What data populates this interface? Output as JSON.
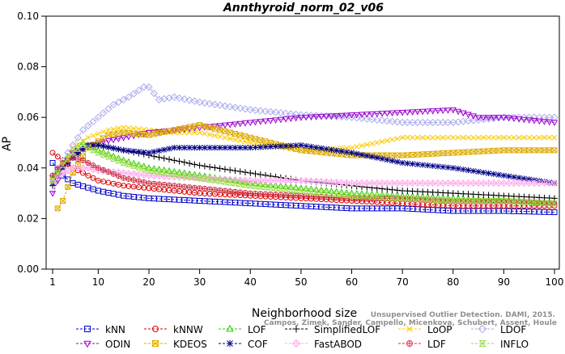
{
  "chart_data": {
    "type": "line",
    "title": "Annthyroid_norm_02_v06",
    "xlabel": "Neighborhood size",
    "ylabel": "AP",
    "xlim": [
      1,
      100
    ],
    "ylim": [
      0.0,
      0.1
    ],
    "xticks": [
      1,
      10,
      20,
      30,
      40,
      50,
      60,
      70,
      80,
      90,
      100
    ],
    "yticks": [
      0.0,
      0.02,
      0.04,
      0.06,
      0.08,
      0.1
    ],
    "ytick_labels": [
      "0.00",
      "0.02",
      "0.04",
      "0.06",
      "0.08",
      "0.10"
    ],
    "grid": false,
    "legend_position": "bottom",
    "watermark": "Unsupervised Outlier Detection. DAMI, 2015. Campos, Zimek, Sander, Campello, Micenkova, Schubert, Assent, Houle",
    "watermark_lines": [
      "Unsupervised Outlier Detection. DAMI, 2015.",
      "Campos, Zimek, Sander, Campello, Micenkova, Schubert, Assent, Houle"
    ],
    "series": [
      {
        "name": "kNN",
        "color": "#0000cc",
        "marker": "square",
        "points": [
          [
            1,
            0.042
          ],
          [
            3,
            0.037
          ],
          [
            5,
            0.034
          ],
          [
            10,
            0.031
          ],
          [
            15,
            0.029
          ],
          [
            20,
            0.028
          ],
          [
            30,
            0.027
          ],
          [
            40,
            0.026
          ],
          [
            50,
            0.025
          ],
          [
            60,
            0.024
          ],
          [
            70,
            0.024
          ],
          [
            80,
            0.023
          ],
          [
            90,
            0.023
          ],
          [
            100,
            0.0225
          ]
        ]
      },
      {
        "name": "kNNW",
        "color": "#dd0000",
        "marker": "circle",
        "points": [
          [
            1,
            0.046
          ],
          [
            3,
            0.043
          ],
          [
            5,
            0.04
          ],
          [
            8,
            0.037
          ],
          [
            10,
            0.035
          ],
          [
            15,
            0.033
          ],
          [
            20,
            0.032
          ],
          [
            30,
            0.03
          ],
          [
            40,
            0.029
          ],
          [
            50,
            0.028
          ],
          [
            60,
            0.027
          ],
          [
            70,
            0.026
          ],
          [
            80,
            0.025
          ],
          [
            90,
            0.025
          ],
          [
            100,
            0.025
          ]
        ]
      },
      {
        "name": "LOF",
        "color": "#22cc00",
        "marker": "triangle-up",
        "points": [
          [
            1,
            0.036
          ],
          [
            3,
            0.042
          ],
          [
            5,
            0.047
          ],
          [
            7,
            0.05
          ],
          [
            10,
            0.047
          ],
          [
            15,
            0.043
          ],
          [
            20,
            0.04
          ],
          [
            30,
            0.037
          ],
          [
            40,
            0.034
          ],
          [
            50,
            0.032
          ],
          [
            60,
            0.03
          ],
          [
            70,
            0.029
          ],
          [
            80,
            0.028
          ],
          [
            90,
            0.027
          ],
          [
            100,
            0.026
          ]
        ]
      },
      {
        "name": "SimplifiedLOF",
        "color": "#000000",
        "marker": "plus",
        "points": [
          [
            1,
            0.033
          ],
          [
            3,
            0.04
          ],
          [
            5,
            0.044
          ],
          [
            7,
            0.048
          ],
          [
            10,
            0.049
          ],
          [
            15,
            0.047
          ],
          [
            20,
            0.045
          ],
          [
            30,
            0.041
          ],
          [
            40,
            0.038
          ],
          [
            50,
            0.035
          ],
          [
            60,
            0.033
          ],
          [
            70,
            0.031
          ],
          [
            80,
            0.03
          ],
          [
            90,
            0.029
          ],
          [
            100,
            0.028
          ]
        ]
      },
      {
        "name": "LoOP",
        "color": "#ffcc00",
        "marker": "x",
        "points": [
          [
            1,
            0.035
          ],
          [
            3,
            0.042
          ],
          [
            5,
            0.048
          ],
          [
            8,
            0.052
          ],
          [
            12,
            0.055
          ],
          [
            15,
            0.056
          ],
          [
            20,
            0.055
          ],
          [
            25,
            0.054
          ],
          [
            30,
            0.054
          ],
          [
            40,
            0.05
          ],
          [
            50,
            0.047
          ],
          [
            60,
            0.048
          ],
          [
            70,
            0.052
          ],
          [
            80,
            0.052
          ],
          [
            90,
            0.052
          ],
          [
            100,
            0.052
          ]
        ]
      },
      {
        "name": "LDOF",
        "color": "#aaaaee",
        "marker": "diamond",
        "points": [
          [
            1,
            0.037
          ],
          [
            3,
            0.043
          ],
          [
            5,
            0.049
          ],
          [
            7,
            0.055
          ],
          [
            10,
            0.06
          ],
          [
            13,
            0.065
          ],
          [
            16,
            0.068
          ],
          [
            19,
            0.072
          ],
          [
            20,
            0.072
          ],
          [
            22,
            0.067
          ],
          [
            25,
            0.068
          ],
          [
            30,
            0.066
          ],
          [
            40,
            0.063
          ],
          [
            50,
            0.061
          ],
          [
            60,
            0.06
          ],
          [
            70,
            0.058
          ],
          [
            80,
            0.058
          ],
          [
            90,
            0.06
          ],
          [
            100,
            0.06
          ]
        ]
      },
      {
        "name": "ODIN",
        "color": "#9900cc",
        "marker": "triangle-down",
        "points": [
          [
            1,
            0.03
          ],
          [
            3,
            0.04
          ],
          [
            5,
            0.046
          ],
          [
            10,
            0.05
          ],
          [
            15,
            0.052
          ],
          [
            20,
            0.054
          ],
          [
            30,
            0.056
          ],
          [
            40,
            0.058
          ],
          [
            50,
            0.06
          ],
          [
            60,
            0.061
          ],
          [
            70,
            0.062
          ],
          [
            80,
            0.063
          ],
          [
            85,
            0.06
          ],
          [
            90,
            0.06
          ],
          [
            100,
            0.058
          ]
        ]
      },
      {
        "name": "KDEOS",
        "color": "#ddaa00",
        "marker": "square-x",
        "points": [
          [
            2,
            0.024
          ],
          [
            3,
            0.027
          ],
          [
            5,
            0.038
          ],
          [
            8,
            0.048
          ],
          [
            12,
            0.053
          ],
          [
            15,
            0.054
          ],
          [
            20,
            0.053
          ],
          [
            25,
            0.055
          ],
          [
            30,
            0.057
          ],
          [
            40,
            0.052
          ],
          [
            50,
            0.047
          ],
          [
            60,
            0.045
          ],
          [
            70,
            0.045
          ],
          [
            80,
            0.046
          ],
          [
            90,
            0.047
          ],
          [
            100,
            0.047
          ]
        ]
      },
      {
        "name": "COF",
        "color": "#000088",
        "marker": "star",
        "points": [
          [
            1,
            0.034
          ],
          [
            3,
            0.04
          ],
          [
            5,
            0.044
          ],
          [
            8,
            0.049
          ],
          [
            10,
            0.049
          ],
          [
            15,
            0.047
          ],
          [
            20,
            0.046
          ],
          [
            25,
            0.048
          ],
          [
            30,
            0.048
          ],
          [
            40,
            0.048
          ],
          [
            50,
            0.049
          ],
          [
            60,
            0.046
          ],
          [
            70,
            0.042
          ],
          [
            80,
            0.04
          ],
          [
            90,
            0.037
          ],
          [
            100,
            0.034
          ]
        ]
      },
      {
        "name": "FastABOD",
        "color": "#ffaaee",
        "marker": "diamond-plus",
        "points": [
          [
            1,
            0.035
          ],
          [
            3,
            0.038
          ],
          [
            5,
            0.04
          ],
          [
            8,
            0.04
          ],
          [
            10,
            0.039
          ],
          [
            15,
            0.038
          ],
          [
            20,
            0.037
          ],
          [
            30,
            0.036
          ],
          [
            40,
            0.035
          ],
          [
            50,
            0.035
          ],
          [
            60,
            0.034
          ],
          [
            70,
            0.034
          ],
          [
            80,
            0.034
          ],
          [
            90,
            0.034
          ],
          [
            100,
            0.034
          ]
        ]
      },
      {
        "name": "LDF",
        "color": "#cc3344",
        "marker": "circle-plus",
        "points": [
          [
            1,
            0.037
          ],
          [
            3,
            0.042
          ],
          [
            5,
            0.044
          ],
          [
            7,
            0.043
          ],
          [
            10,
            0.04
          ],
          [
            15,
            0.036
          ],
          [
            20,
            0.034
          ],
          [
            30,
            0.032
          ],
          [
            40,
            0.03
          ],
          [
            50,
            0.029
          ],
          [
            60,
            0.028
          ],
          [
            70,
            0.028
          ],
          [
            80,
            0.027
          ],
          [
            90,
            0.027
          ],
          [
            100,
            0.026
          ]
        ]
      },
      {
        "name": "INFLO",
        "color": "#99dd44",
        "marker": "hourglass",
        "points": [
          [
            1,
            0.035
          ],
          [
            3,
            0.041
          ],
          [
            5,
            0.046
          ],
          [
            7,
            0.049
          ],
          [
            10,
            0.046
          ],
          [
            15,
            0.042
          ],
          [
            20,
            0.039
          ],
          [
            30,
            0.036
          ],
          [
            40,
            0.033
          ],
          [
            50,
            0.031
          ],
          [
            60,
            0.029
          ],
          [
            70,
            0.028
          ],
          [
            80,
            0.027
          ],
          [
            90,
            0.027
          ],
          [
            100,
            0.026
          ]
        ]
      }
    ]
  }
}
